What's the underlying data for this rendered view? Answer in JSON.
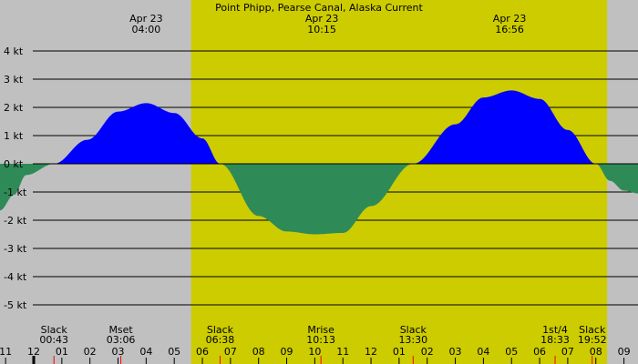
{
  "chart_data": {
    "type": "area",
    "title": "Point Phipp, Pearse Canal, Alaska Current",
    "unit": "kt",
    "ylim": [
      -5.5,
      4.5
    ],
    "y_ticks": [
      {
        "value": 4,
        "label": "4 kt"
      },
      {
        "value": 3,
        "label": "3 kt"
      },
      {
        "value": 2,
        "label": "2 kt"
      },
      {
        "value": 1,
        "label": "1 kt"
      },
      {
        "value": 0,
        "label": "0 kt"
      },
      {
        "value": -1,
        "label": "-1 kt"
      },
      {
        "value": -2,
        "label": "-2 kt"
      },
      {
        "value": -3,
        "label": "-3 kt"
      },
      {
        "value": -4,
        "label": "-4 kt"
      },
      {
        "value": -5,
        "label": "-5 kt"
      }
    ],
    "x_axis": {
      "unit": "hour",
      "range": [
        -13.2,
        9.5
      ],
      "hour_labels": [
        {
          "hour": -13,
          "label": "11"
        },
        {
          "hour": -12,
          "label": "12"
        },
        {
          "hour": -11,
          "label": "01"
        },
        {
          "hour": -10,
          "label": "02"
        },
        {
          "hour": -9,
          "label": "03"
        },
        {
          "hour": -8,
          "label": "04"
        },
        {
          "hour": -7,
          "label": "05"
        },
        {
          "hour": -6,
          "label": "06"
        },
        {
          "hour": -5,
          "label": "07"
        },
        {
          "hour": -4,
          "label": "08"
        },
        {
          "hour": -3,
          "label": "09"
        },
        {
          "hour": -2,
          "label": "10"
        },
        {
          "hour": -1,
          "label": "11"
        },
        {
          "hour": 0,
          "label": "12"
        },
        {
          "hour": 1,
          "label": "01"
        },
        {
          "hour": 2,
          "label": "02"
        },
        {
          "hour": 3,
          "label": "03"
        },
        {
          "hour": 4,
          "label": "04"
        },
        {
          "hour": 5,
          "label": "05"
        },
        {
          "hour": 6,
          "label": "06"
        },
        {
          "hour": 7,
          "label": "07"
        },
        {
          "hour": 8,
          "label": "08"
        },
        {
          "hour": 9,
          "label": "09"
        }
      ],
      "midnight_hour": -12
    },
    "daylight_band": {
      "start_hour": 5.6,
      "end_hour": 20.4
    },
    "series": [
      {
        "points": [
          [
            -13.2,
            -1.65
          ],
          [
            -12.7,
            -1.1
          ],
          [
            -12.27,
            -0.4
          ],
          [
            -11.28,
            0.0
          ],
          [
            -10.1,
            0.85
          ],
          [
            -9.0,
            1.85
          ],
          [
            -8.0,
            2.15
          ],
          [
            -7.0,
            1.8
          ],
          [
            -6.0,
            0.9
          ],
          [
            -5.37,
            0.0
          ],
          [
            -4.0,
            -1.85
          ],
          [
            -3.0,
            -2.4
          ],
          [
            -2.0,
            -2.5
          ],
          [
            -1.0,
            -2.45
          ],
          [
            0.0,
            -1.5
          ],
          [
            1.5,
            0.0
          ],
          [
            3.0,
            1.4
          ],
          [
            4.0,
            2.35
          ],
          [
            5.0,
            2.6
          ],
          [
            6.0,
            2.3
          ],
          [
            7.0,
            1.2
          ],
          [
            8.0,
            0.0
          ],
          [
            8.5,
            -0.6
          ],
          [
            9.0,
            -0.95
          ],
          [
            9.5,
            -1.05
          ]
        ]
      }
    ],
    "top_events": [
      {
        "hour": -8.0,
        "date": "Apr 23",
        "time": "04:00"
      },
      {
        "hour": -1.75,
        "date": "Apr 23",
        "time": "10:15"
      },
      {
        "hour": 4.93,
        "date": "Apr 23",
        "time": "16:56"
      }
    ],
    "bottom_events": [
      {
        "hour": -11.28,
        "name": "Slack",
        "time": "00:43",
        "marker": true
      },
      {
        "hour": -8.9,
        "name": "Mset",
        "time": "03:06",
        "marker": true
      },
      {
        "hour": -5.37,
        "name": "Slack",
        "time": "06:38",
        "marker": true
      },
      {
        "hour": -1.78,
        "name": "Mrise",
        "time": "10:13",
        "marker": true
      },
      {
        "hour": 1.5,
        "name": "Slack",
        "time": "13:30",
        "marker": true
      },
      {
        "hour": 6.55,
        "name": "1st/4",
        "time": "18:33",
        "marker": true
      },
      {
        "hour": 7.87,
        "name": "Slack",
        "time": "19:52",
        "marker": true
      }
    ],
    "colors": {
      "background": "#c0c0c0",
      "daylight": "#cccc00",
      "flood": "#0000ff",
      "ebb": "#2e8b57",
      "gridline": "#000000",
      "event_marker": "#ff0000",
      "midnight_marker": "#000000"
    }
  }
}
